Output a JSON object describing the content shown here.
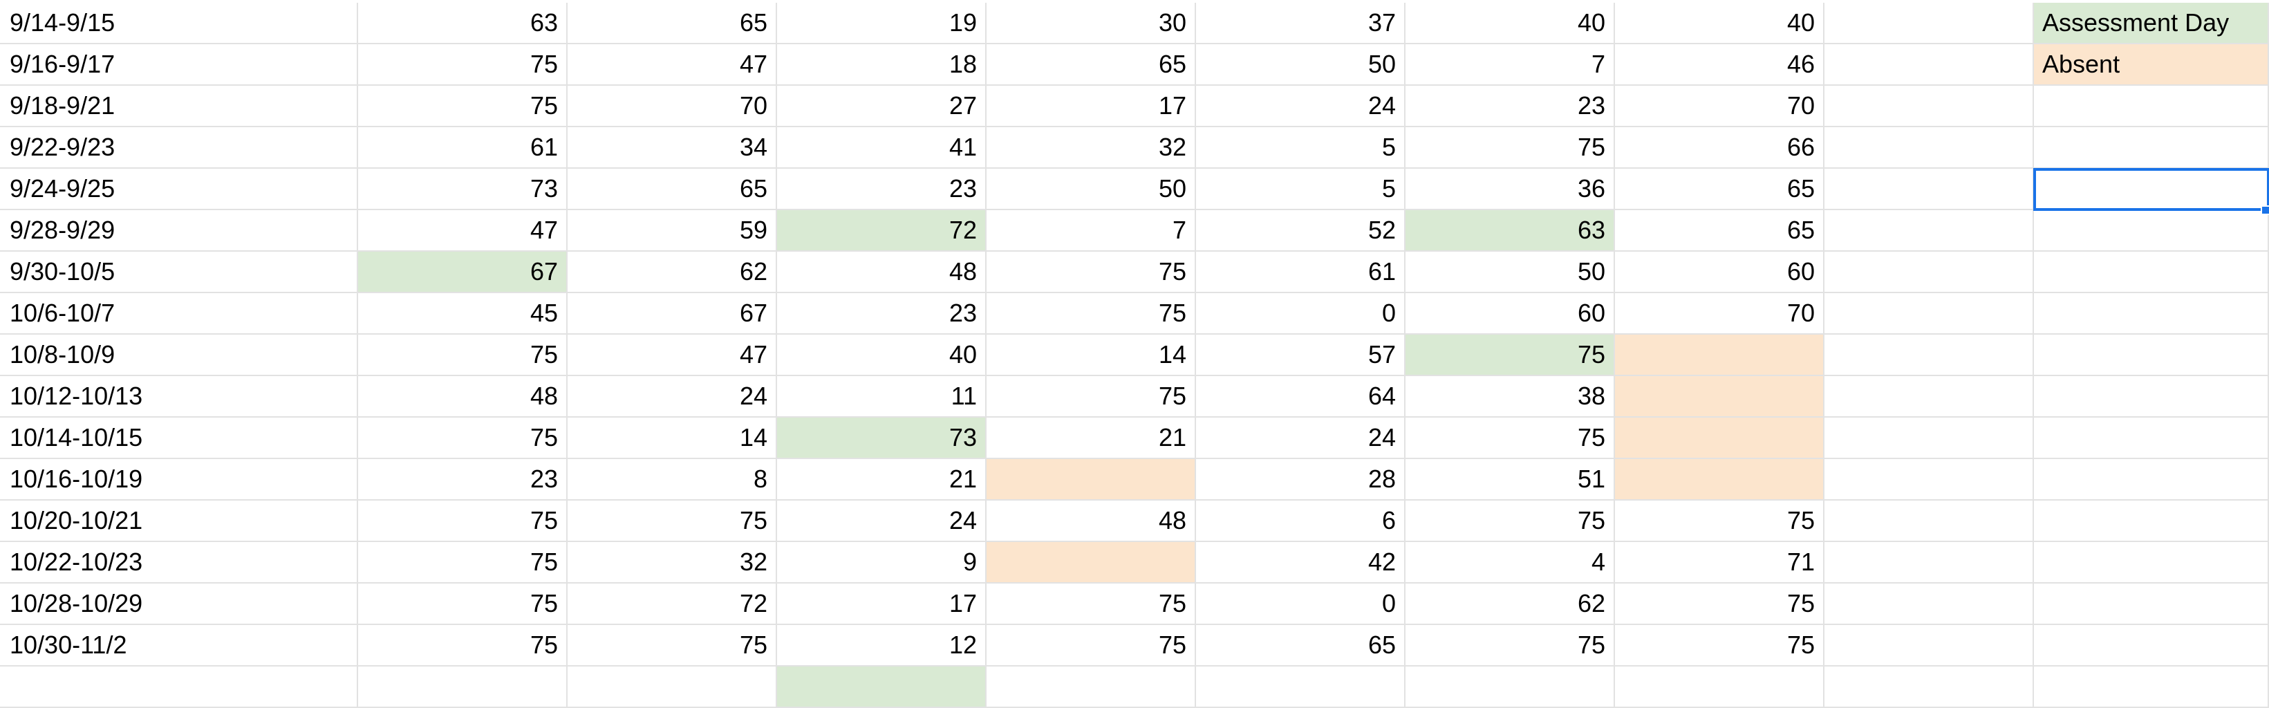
{
  "colors": {
    "assessment_day": "#d9ead3",
    "absent": "#fce5cd",
    "selection": "#1a73e8",
    "gridline": "#e2e2e2"
  },
  "rows": [
    {
      "range": "9/14-9/15",
      "values": [
        "63",
        "65",
        "19",
        "30",
        "37",
        "40",
        "40"
      ],
      "fills": [
        "",
        "",
        "",
        "",
        "",
        "",
        ""
      ]
    },
    {
      "range": "9/16-9/17",
      "values": [
        "75",
        "47",
        "18",
        "65",
        "50",
        "7",
        "46"
      ],
      "fills": [
        "",
        "",
        "",
        "",
        "",
        "",
        ""
      ]
    },
    {
      "range": "9/18-9/21",
      "values": [
        "75",
        "70",
        "27",
        "17",
        "24",
        "23",
        "70"
      ],
      "fills": [
        "",
        "",
        "",
        "",
        "",
        "",
        ""
      ]
    },
    {
      "range": "9/22-9/23",
      "values": [
        "61",
        "34",
        "41",
        "32",
        "5",
        "75",
        "66"
      ],
      "fills": [
        "",
        "",
        "",
        "",
        "",
        "",
        ""
      ]
    },
    {
      "range": "9/24-9/25",
      "values": [
        "73",
        "65",
        "23",
        "50",
        "5",
        "36",
        "65"
      ],
      "fills": [
        "",
        "",
        "",
        "",
        "",
        "",
        ""
      ]
    },
    {
      "range": "9/28-9/29",
      "values": [
        "47",
        "59",
        "72",
        "7",
        "52",
        "63",
        "65"
      ],
      "fills": [
        "",
        "",
        "assessment_day",
        "",
        "",
        "assessment_day",
        ""
      ]
    },
    {
      "range": "9/30-10/5",
      "values": [
        "67",
        "62",
        "48",
        "75",
        "61",
        "50",
        "60"
      ],
      "fills": [
        "assessment_day",
        "",
        "",
        "",
        "",
        "",
        ""
      ]
    },
    {
      "range": "10/6-10/7",
      "values": [
        "45",
        "67",
        "23",
        "75",
        "0",
        "60",
        "70"
      ],
      "fills": [
        "",
        "",
        "",
        "",
        "",
        "",
        ""
      ]
    },
    {
      "range": "10/8-10/9",
      "values": [
        "75",
        "47",
        "40",
        "14",
        "57",
        "75",
        ""
      ],
      "fills": [
        "",
        "",
        "",
        "",
        "",
        "assessment_day",
        "absent"
      ]
    },
    {
      "range": "10/12-10/13",
      "values": [
        "48",
        "24",
        "11",
        "75",
        "64",
        "38",
        ""
      ],
      "fills": [
        "",
        "",
        "",
        "",
        "",
        "",
        "absent"
      ]
    },
    {
      "range": "10/14-10/15",
      "values": [
        "75",
        "14",
        "73",
        "21",
        "24",
        "75",
        ""
      ],
      "fills": [
        "",
        "",
        "assessment_day",
        "",
        "",
        "",
        "absent"
      ]
    },
    {
      "range": "10/16-10/19",
      "values": [
        "23",
        "8",
        "21",
        "",
        "28",
        "51",
        ""
      ],
      "fills": [
        "",
        "",
        "",
        "absent",
        "",
        "",
        "absent"
      ]
    },
    {
      "range": "10/20-10/21",
      "values": [
        "75",
        "75",
        "24",
        "48",
        "6",
        "75",
        "75"
      ],
      "fills": [
        "",
        "",
        "",
        "",
        "",
        "",
        ""
      ]
    },
    {
      "range": "10/22-10/23",
      "values": [
        "75",
        "32",
        "9",
        "",
        "42",
        "4",
        "71"
      ],
      "fills": [
        "",
        "",
        "",
        "absent",
        "",
        "",
        ""
      ]
    },
    {
      "range": "10/28-10/29",
      "values": [
        "75",
        "72",
        "17",
        "75",
        "0",
        "62",
        "75"
      ],
      "fills": [
        "",
        "",
        "",
        "",
        "",
        "",
        ""
      ]
    },
    {
      "range": "10/30-11/2",
      "values": [
        "75",
        "75",
        "12",
        "75",
        "65",
        "75",
        "75"
      ],
      "fills": [
        "",
        "",
        "",
        "",
        "",
        "",
        ""
      ]
    },
    {
      "range": "",
      "values": [
        "",
        "",
        "",
        "",
        "",
        "",
        ""
      ],
      "fills": [
        "",
        "",
        "assessment_day",
        "",
        "",
        "",
        ""
      ]
    }
  ],
  "legend": [
    {
      "label": "Assessment Day",
      "fill": "assessment_day"
    },
    {
      "label": "Absent",
      "fill": "absent"
    },
    {
      "label": "",
      "fill": ""
    },
    {
      "label": "",
      "fill": ""
    },
    {
      "label": "",
      "fill": ""
    },
    {
      "label": "",
      "fill": ""
    },
    {
      "label": "",
      "fill": ""
    },
    {
      "label": "",
      "fill": ""
    },
    {
      "label": "",
      "fill": ""
    },
    {
      "label": "",
      "fill": ""
    },
    {
      "label": "",
      "fill": ""
    },
    {
      "label": "",
      "fill": ""
    },
    {
      "label": "",
      "fill": ""
    },
    {
      "label": "",
      "fill": ""
    },
    {
      "label": "",
      "fill": ""
    },
    {
      "label": "",
      "fill": ""
    },
    {
      "label": "",
      "fill": ""
    }
  ],
  "selected_cell": {
    "area": "legend",
    "row": 4
  }
}
